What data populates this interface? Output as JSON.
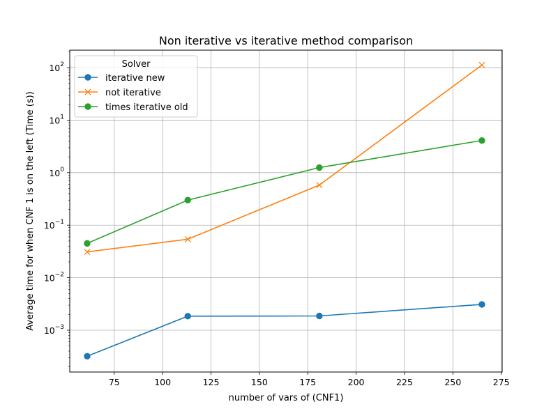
{
  "chart_data": {
    "type": "line",
    "title": "Non iterative vs iterative method comparison",
    "xlabel": "number of vars of (CNF1)",
    "ylabel": "Average time for when CNF 1 is on the left (Time (s))",
    "xlim": [
      52,
      275.5
    ],
    "ylim": [
      0.00016,
      215
    ],
    "yscale": "log",
    "grid": true,
    "x_ticks": [
      75,
      100,
      125,
      150,
      175,
      200,
      225,
      250,
      275
    ],
    "y_ticks": [
      0.001,
      0.01,
      0.1,
      1,
      10,
      100
    ],
    "y_tick_labels": [
      {
        "base": "10",
        "exp": "−3"
      },
      {
        "base": "10",
        "exp": "−2"
      },
      {
        "base": "10",
        "exp": "−1"
      },
      {
        "base": "10",
        "exp": "0"
      },
      {
        "base": "10",
        "exp": "1"
      },
      {
        "base": "10",
        "exp": "2"
      }
    ],
    "legend": {
      "title": "Solver",
      "position": "top-left"
    },
    "series": [
      {
        "name": "iterative new",
        "color": "#1f77b4",
        "marker": "circle",
        "x": [
          61,
          113,
          181,
          265
        ],
        "values": [
          0.00032,
          0.00185,
          0.00187,
          0.0031
        ]
      },
      {
        "name": "not iterative",
        "color": "#ff7f0e",
        "marker": "x",
        "x": [
          61,
          113,
          181,
          265
        ],
        "values": [
          0.031,
          0.054,
          0.58,
          112
        ]
      },
      {
        "name": "times iterative old",
        "color": "#2ca02c",
        "marker": "circle",
        "x": [
          61,
          113,
          181,
          265
        ],
        "values": [
          0.045,
          0.3,
          1.25,
          4.1
        ]
      }
    ]
  }
}
